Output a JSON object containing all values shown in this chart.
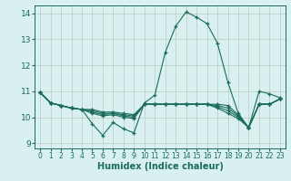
{
  "xlabel": "Humidex (Indice chaleur)",
  "bg_color": "#d8f0f0",
  "grid_color": "#c0c8c0",
  "line_color": "#1a6b5a",
  "xlim": [
    -0.5,
    23.5
  ],
  "ylim": [
    8.8,
    14.3
  ],
  "yticks": [
    9,
    10,
    11,
    12,
    13,
    14
  ],
  "xticks": [
    0,
    1,
    2,
    3,
    4,
    5,
    6,
    7,
    8,
    9,
    10,
    11,
    12,
    13,
    14,
    15,
    16,
    17,
    18,
    19,
    20,
    21,
    22,
    23
  ],
  "main_line": {
    "x": [
      0,
      1,
      2,
      3,
      4,
      5,
      6,
      7,
      8,
      9,
      10,
      11,
      12,
      13,
      14,
      15,
      16,
      17,
      18,
      19,
      20,
      21,
      22,
      23
    ],
    "y": [
      10.95,
      10.55,
      10.45,
      10.35,
      10.3,
      9.75,
      9.3,
      9.8,
      9.55,
      9.4,
      10.55,
      10.85,
      12.5,
      13.5,
      14.05,
      13.85,
      13.6,
      12.85,
      11.35,
      10.15,
      9.6,
      11.0,
      10.9,
      10.75
    ]
  },
  "extra_lines": [
    {
      "x": [
        0,
        1,
        2,
        3,
        4,
        5,
        6,
        7,
        8,
        9,
        10,
        11,
        12,
        13,
        14,
        15,
        16,
        17,
        18,
        19,
        20,
        21,
        22,
        23
      ],
      "y": [
        10.95,
        10.55,
        10.45,
        10.35,
        10.3,
        10.3,
        10.2,
        10.2,
        10.15,
        10.1,
        10.5,
        10.5,
        10.5,
        10.5,
        10.5,
        10.5,
        10.5,
        10.5,
        10.45,
        10.1,
        9.6,
        10.5,
        10.5,
        10.7
      ]
    },
    {
      "x": [
        0,
        1,
        2,
        3,
        4,
        5,
        6,
        7,
        8,
        9,
        10,
        11,
        12,
        13,
        14,
        15,
        16,
        17,
        18,
        19,
        20,
        21,
        22,
        23
      ],
      "y": [
        10.95,
        10.55,
        10.45,
        10.35,
        10.3,
        10.25,
        10.15,
        10.15,
        10.1,
        10.05,
        10.5,
        10.5,
        10.5,
        10.5,
        10.5,
        10.5,
        10.5,
        10.45,
        10.35,
        10.05,
        9.6,
        10.5,
        10.5,
        10.7
      ]
    },
    {
      "x": [
        0,
        1,
        2,
        3,
        4,
        5,
        6,
        7,
        8,
        9,
        10,
        11,
        12,
        13,
        14,
        15,
        16,
        17,
        18,
        19,
        20,
        21,
        22,
        23
      ],
      "y": [
        10.95,
        10.55,
        10.45,
        10.35,
        10.3,
        10.2,
        10.1,
        10.15,
        10.05,
        10.0,
        10.5,
        10.5,
        10.5,
        10.5,
        10.5,
        10.5,
        10.5,
        10.4,
        10.25,
        10.0,
        9.6,
        10.5,
        10.5,
        10.7
      ]
    },
    {
      "x": [
        0,
        1,
        2,
        3,
        4,
        5,
        6,
        7,
        8,
        9,
        10,
        11,
        12,
        13,
        14,
        15,
        16,
        17,
        18,
        19,
        20,
        21,
        22,
        23
      ],
      "y": [
        10.95,
        10.55,
        10.45,
        10.35,
        10.3,
        10.15,
        10.05,
        10.1,
        10.0,
        9.95,
        10.5,
        10.5,
        10.5,
        10.5,
        10.5,
        10.5,
        10.5,
        10.35,
        10.15,
        9.95,
        9.6,
        10.5,
        10.5,
        10.7
      ]
    }
  ]
}
